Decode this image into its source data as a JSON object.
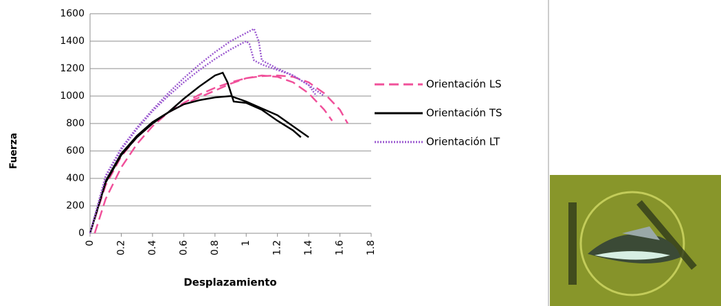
{
  "chart_data": {
    "type": "line",
    "x_label": "Desplazamiento",
    "y_label": "Fuerza",
    "xlim": [
      0,
      1.8
    ],
    "xticks": [
      0,
      0.2,
      0.4,
      0.6,
      0.8,
      1,
      1.2,
      1.4,
      1.6,
      1.8
    ],
    "ylim": [
      0,
      1600
    ],
    "yticks": [
      0,
      200,
      400,
      600,
      800,
      1000,
      1200,
      1400,
      1600
    ],
    "grid": true,
    "legend": "right",
    "series": [
      {
        "name": "Orientación LS",
        "color": "#f0509a",
        "dash": "dashed",
        "x": [
          0.03,
          0.1,
          0.2,
          0.3,
          0.4,
          0.5,
          0.6,
          0.7,
          0.8,
          0.9,
          1.0,
          1.1,
          1.2,
          1.3,
          1.4,
          1.5,
          1.6,
          1.65,
          null,
          0,
          0.1,
          0.2,
          0.3,
          0.4,
          0.5,
          0.6,
          0.7,
          0.8,
          0.9,
          1.0,
          1.1,
          1.2,
          1.3,
          1.4,
          1.5,
          1.55
        ],
        "values": [
          0,
          250,
          480,
          650,
          780,
          880,
          950,
          1010,
          1060,
          1100,
          1130,
          1145,
          1150,
          1140,
          1100,
          1020,
          900,
          800,
          null,
          0,
          350,
          560,
          700,
          800,
          880,
          940,
          990,
          1040,
          1090,
          1130,
          1150,
          1140,
          1100,
          1020,
          900,
          820
        ]
      },
      {
        "name": "Orientación TS",
        "color": "#000000",
        "dash": "solid",
        "x": [
          0,
          0.1,
          0.2,
          0.3,
          0.4,
          0.5,
          0.6,
          0.7,
          0.8,
          0.85,
          0.88,
          0.92,
          1.0,
          1.1,
          1.2,
          1.3,
          1.35,
          null,
          0,
          0.1,
          0.2,
          0.3,
          0.4,
          0.5,
          0.6,
          0.7,
          0.8,
          0.9,
          1.0,
          1.1,
          1.2,
          1.3,
          1.4
        ],
        "values": [
          0,
          370,
          570,
          700,
          800,
          880,
          980,
          1070,
          1150,
          1170,
          1100,
          960,
          950,
          900,
          820,
          750,
          700,
          null,
          0,
          380,
          580,
          710,
          810,
          880,
          940,
          970,
          990,
          1000,
          960,
          910,
          860,
          780,
          700
        ]
      },
      {
        "name": "Orientación LT",
        "color": "#9b59d0",
        "dash": "dotted",
        "x": [
          0,
          0.1,
          0.2,
          0.3,
          0.4,
          0.5,
          0.6,
          0.7,
          0.8,
          0.9,
          1.0,
          1.05,
          1.08,
          1.1,
          1.2,
          1.3,
          1.4,
          1.5,
          null,
          0,
          0.1,
          0.2,
          0.3,
          0.4,
          0.5,
          0.6,
          0.7,
          0.8,
          0.9,
          1.0,
          1.02,
          1.05,
          1.1,
          1.2,
          1.3,
          1.4,
          1.45
        ],
        "values": [
          0,
          420,
          620,
          770,
          900,
          1020,
          1130,
          1230,
          1320,
          1400,
          1460,
          1490,
          1400,
          1260,
          1200,
          1150,
          1080,
          1000,
          null,
          0,
          410,
          610,
          760,
          890,
          1000,
          1100,
          1190,
          1270,
          1340,
          1400,
          1380,
          1260,
          1230,
          1190,
          1150,
          1080,
          1000
        ]
      }
    ]
  }
}
